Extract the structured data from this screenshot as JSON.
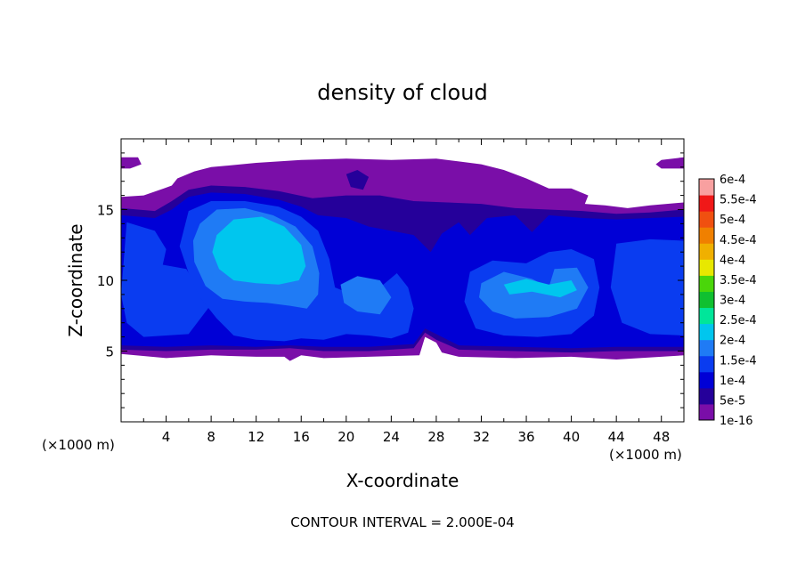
{
  "chart_data": {
    "type": "heatmap",
    "title": "density of cloud",
    "xlabel": "X-coordinate",
    "ylabel": "Z-coordinate",
    "x_unit_left": "(×1000 m)",
    "x_unit_right": "(×1000 m)",
    "xlim": [
      0,
      50
    ],
    "ylim": [
      0,
      20
    ],
    "x_ticks": [
      "4",
      "8",
      "12",
      "16",
      "20",
      "24",
      "28",
      "32",
      "36",
      "40",
      "44",
      "48"
    ],
    "y_ticks": [
      "5",
      "10",
      "15"
    ],
    "contour_note": "CONTOUR INTERVAL = 2.000E-04",
    "colorbar": {
      "labels": [
        "1e-16",
        "5e-5",
        "1e-4",
        "1.5e-4",
        "2e-4",
        "2.5e-4",
        "3e-4",
        "3.5e-4",
        "4e-4",
        "4.5e-4",
        "5e-4",
        "5.5e-4",
        "6e-4"
      ],
      "colors": [
        "#7a0ea8",
        "#25009a",
        "#0000d6",
        "#0a3cf0",
        "#1f7bf5",
        "#00c6ee",
        "#00e69a",
        "#10c030",
        "#4ad60a",
        "#e8e800",
        "#f0b000",
        "#f08000",
        "#f05010",
        "#f01818",
        "#f8a0a0"
      ]
    },
    "regions": [
      {
        "level": 0,
        "color": "#7a0ea8",
        "pts": [
          [
            0,
            15.9
          ],
          [
            2,
            16
          ],
          [
            3.8,
            16.5
          ],
          [
            4.5,
            16.7
          ],
          [
            5,
            17.2
          ],
          [
            6.5,
            17.7
          ],
          [
            8,
            18
          ],
          [
            12,
            18.3
          ],
          [
            16,
            18.5
          ],
          [
            20,
            18.6
          ],
          [
            24,
            18.5
          ],
          [
            28,
            18.6
          ],
          [
            30,
            18.4
          ],
          [
            32,
            18.2
          ],
          [
            34,
            17.8
          ],
          [
            36,
            17.2
          ],
          [
            38,
            16.5
          ],
          [
            40,
            16.5
          ],
          [
            41.5,
            16
          ],
          [
            41.2,
            15.4
          ],
          [
            43,
            15.3
          ],
          [
            45,
            15.1
          ],
          [
            47,
            15.3
          ],
          [
            50,
            15.5
          ],
          [
            50,
            4.7
          ],
          [
            44,
            4.4
          ],
          [
            40,
            4.6
          ],
          [
            35,
            4.5
          ],
          [
            30,
            4.6
          ],
          [
            28.5,
            4.9
          ],
          [
            28,
            5.6
          ],
          [
            27,
            6
          ],
          [
            26.5,
            4.7
          ],
          [
            22,
            4.6
          ],
          [
            18,
            4.5
          ],
          [
            16,
            4.7
          ],
          [
            15,
            4.3
          ],
          [
            14.5,
            4.6
          ],
          [
            12,
            4.6
          ],
          [
            8,
            4.7
          ],
          [
            4,
            4.5
          ],
          [
            0,
            4.8
          ]
        ]
      },
      {
        "level": 0,
        "color": "#7a0ea8",
        "pts": [
          [
            0,
            18.7
          ],
          [
            1.5,
            18.7
          ],
          [
            1.8,
            18.2
          ],
          [
            0.8,
            17.9
          ],
          [
            0,
            17.9
          ]
        ]
      },
      {
        "level": 0,
        "color": "#7a0ea8",
        "pts": [
          [
            48,
            18.5
          ],
          [
            50,
            18.7
          ],
          [
            50,
            17.9
          ],
          [
            48,
            17.9
          ],
          [
            47.5,
            18.2
          ]
        ]
      },
      {
        "level": 1,
        "color": "#25009a",
        "pts": [
          [
            0,
            15.1
          ],
          [
            3,
            14.9
          ],
          [
            4.5,
            15.6
          ],
          [
            6,
            16.4
          ],
          [
            8,
            16.7
          ],
          [
            11,
            16.6
          ],
          [
            14,
            16.3
          ],
          [
            17,
            15.8
          ],
          [
            20,
            16
          ],
          [
            23,
            16
          ],
          [
            26,
            15.6
          ],
          [
            29,
            15.5
          ],
          [
            32,
            15.4
          ],
          [
            35,
            15.1
          ],
          [
            38,
            15
          ],
          [
            41,
            14.9
          ],
          [
            44,
            14.7
          ],
          [
            47,
            14.8
          ],
          [
            50,
            15
          ],
          [
            50,
            5
          ],
          [
            44,
            5
          ],
          [
            40,
            4.9
          ],
          [
            35,
            5
          ],
          [
            30,
            5.1
          ],
          [
            28,
            5.8
          ],
          [
            27,
            6.3
          ],
          [
            26,
            5.2
          ],
          [
            22,
            5
          ],
          [
            18,
            5
          ],
          [
            15,
            5.2
          ],
          [
            12,
            5.1
          ],
          [
            8,
            5.1
          ],
          [
            4,
            5
          ],
          [
            0,
            5.1
          ]
        ]
      },
      {
        "level": 1,
        "color": "#25009a",
        "pts": [
          [
            20,
            17.5
          ],
          [
            21,
            17.8
          ],
          [
            22,
            17.3
          ],
          [
            21.5,
            16.4
          ],
          [
            20.4,
            16.6
          ]
        ]
      },
      {
        "level": 2,
        "color": "#0000d6",
        "pts": [
          [
            0,
            14.6
          ],
          [
            3,
            14.4
          ],
          [
            4.5,
            15
          ],
          [
            6,
            15.9
          ],
          [
            8,
            16.2
          ],
          [
            11,
            16.1
          ],
          [
            14,
            15.7
          ],
          [
            16,
            15.2
          ],
          [
            17.5,
            14.6
          ],
          [
            20,
            14.4
          ],
          [
            22,
            13.8
          ],
          [
            24,
            13.5
          ],
          [
            26,
            13.2
          ],
          [
            27.5,
            12
          ],
          [
            28.5,
            13.3
          ],
          [
            30,
            14.1
          ],
          [
            31,
            13.2
          ],
          [
            32.5,
            14.4
          ],
          [
            35,
            14.6
          ],
          [
            36.5,
            13.4
          ],
          [
            38,
            14.6
          ],
          [
            41,
            14.4
          ],
          [
            44,
            14.3
          ],
          [
            47,
            14.4
          ],
          [
            50,
            14.5
          ],
          [
            50,
            5.3
          ],
          [
            44,
            5.3
          ],
          [
            40,
            5.2
          ],
          [
            35,
            5.3
          ],
          [
            30,
            5.4
          ],
          [
            28,
            6.2
          ],
          [
            27,
            6.6
          ],
          [
            26,
            5.5
          ],
          [
            22,
            5.3
          ],
          [
            18,
            5.3
          ],
          [
            15,
            5.4
          ],
          [
            12,
            5.3
          ],
          [
            8,
            5.4
          ],
          [
            4,
            5.3
          ],
          [
            0,
            5.4
          ]
        ]
      },
      {
        "level": 3,
        "color": "#0a3cf0",
        "pts": [
          [
            0.5,
            14.1
          ],
          [
            3,
            13.5
          ],
          [
            4,
            12.2
          ],
          [
            3.7,
            11.1
          ],
          [
            5.8,
            10.8
          ],
          [
            6.5,
            9.8
          ],
          [
            8,
            8.3
          ],
          [
            6,
            6.2
          ],
          [
            2,
            6
          ],
          [
            0.5,
            7
          ],
          [
            0,
            9
          ]
        ]
      },
      {
        "level": 3,
        "color": "#0a3cf0",
        "pts": [
          [
            6,
            14.9
          ],
          [
            8,
            15.6
          ],
          [
            11,
            15.6
          ],
          [
            14,
            15.2
          ],
          [
            16,
            14.5
          ],
          [
            17.5,
            13.5
          ],
          [
            18.5,
            11.5
          ],
          [
            19,
            9.5
          ],
          [
            20.5,
            9
          ],
          [
            22,
            8.5
          ],
          [
            23,
            9.5
          ],
          [
            24.5,
            10.5
          ],
          [
            25.5,
            9.5
          ],
          [
            26,
            8
          ],
          [
            25.5,
            6.3
          ],
          [
            24,
            5.9
          ],
          [
            22,
            6.1
          ],
          [
            20,
            6.2
          ],
          [
            18,
            5.8
          ],
          [
            16,
            5.9
          ],
          [
            14.5,
            5.7
          ],
          [
            12,
            5.8
          ],
          [
            10,
            6.1
          ],
          [
            8.5,
            7.3
          ],
          [
            7,
            8.8
          ],
          [
            6,
            10.5
          ],
          [
            5.2,
            12.4
          ]
        ]
      },
      {
        "level": 3,
        "color": "#0a3cf0",
        "pts": [
          [
            31,
            10.6
          ],
          [
            33,
            11.4
          ],
          [
            36,
            11.2
          ],
          [
            38,
            12
          ],
          [
            40,
            12.2
          ],
          [
            42,
            11.5
          ],
          [
            42.5,
            9.5
          ],
          [
            42,
            7.5
          ],
          [
            40,
            6.2
          ],
          [
            37,
            6
          ],
          [
            34,
            6.1
          ],
          [
            31.5,
            6.6
          ],
          [
            30.5,
            8.5
          ]
        ]
      },
      {
        "level": 3,
        "color": "#0a3cf0",
        "pts": [
          [
            44,
            12.6
          ],
          [
            47,
            12.9
          ],
          [
            50,
            12.8
          ],
          [
            50,
            6.1
          ],
          [
            47,
            6.2
          ],
          [
            44.5,
            7
          ],
          [
            43.5,
            9.5
          ]
        ]
      },
      {
        "level": 4,
        "color": "#1f7bf5",
        "pts": [
          [
            7,
            14
          ],
          [
            8.5,
            15
          ],
          [
            11,
            15.1
          ],
          [
            13.5,
            14.6
          ],
          [
            15.5,
            13.8
          ],
          [
            17,
            12.4
          ],
          [
            17.6,
            10.5
          ],
          [
            17.5,
            9
          ],
          [
            16.5,
            8
          ],
          [
            15,
            8.2
          ],
          [
            13,
            8.4
          ],
          [
            11,
            8.5
          ],
          [
            9,
            8.7
          ],
          [
            7.5,
            9.6
          ],
          [
            6.5,
            11.3
          ],
          [
            6.4,
            12.8
          ]
        ]
      },
      {
        "level": 4,
        "color": "#1f7bf5",
        "pts": [
          [
            19.5,
            9.7
          ],
          [
            21,
            10.3
          ],
          [
            23,
            10
          ],
          [
            24,
            8.8
          ],
          [
            23,
            7.6
          ],
          [
            21,
            7.8
          ],
          [
            19.8,
            8.4
          ]
        ]
      },
      {
        "level": 4,
        "color": "#1f7bf5",
        "pts": [
          [
            32,
            9.8
          ],
          [
            34,
            10.6
          ],
          [
            36.5,
            10.1
          ],
          [
            38,
            9.5
          ],
          [
            38.5,
            10.8
          ],
          [
            40.5,
            10.9
          ],
          [
            41.5,
            9.5
          ],
          [
            40.5,
            8
          ],
          [
            38,
            7.4
          ],
          [
            35,
            7.3
          ],
          [
            33,
            7.8
          ],
          [
            31.8,
            8.8
          ]
        ]
      },
      {
        "level": 5,
        "color": "#00c6ee",
        "pts": [
          [
            8.5,
            13.2
          ],
          [
            10,
            14.3
          ],
          [
            12.5,
            14.5
          ],
          [
            14.5,
            13.8
          ],
          [
            16,
            12.5
          ],
          [
            16.4,
            11
          ],
          [
            15.8,
            10
          ],
          [
            14,
            9.7
          ],
          [
            12,
            9.8
          ],
          [
            10,
            10
          ],
          [
            8.7,
            10.8
          ],
          [
            8.1,
            12
          ]
        ]
      },
      {
        "level": 5,
        "color": "#00c6ee",
        "pts": [
          [
            34,
            9.7
          ],
          [
            36,
            10.1
          ],
          [
            38,
            9.7
          ],
          [
            40,
            10
          ],
          [
            40.5,
            9.3
          ],
          [
            39,
            8.8
          ],
          [
            36.5,
            9.2
          ],
          [
            34.5,
            9
          ]
        ]
      }
    ]
  }
}
